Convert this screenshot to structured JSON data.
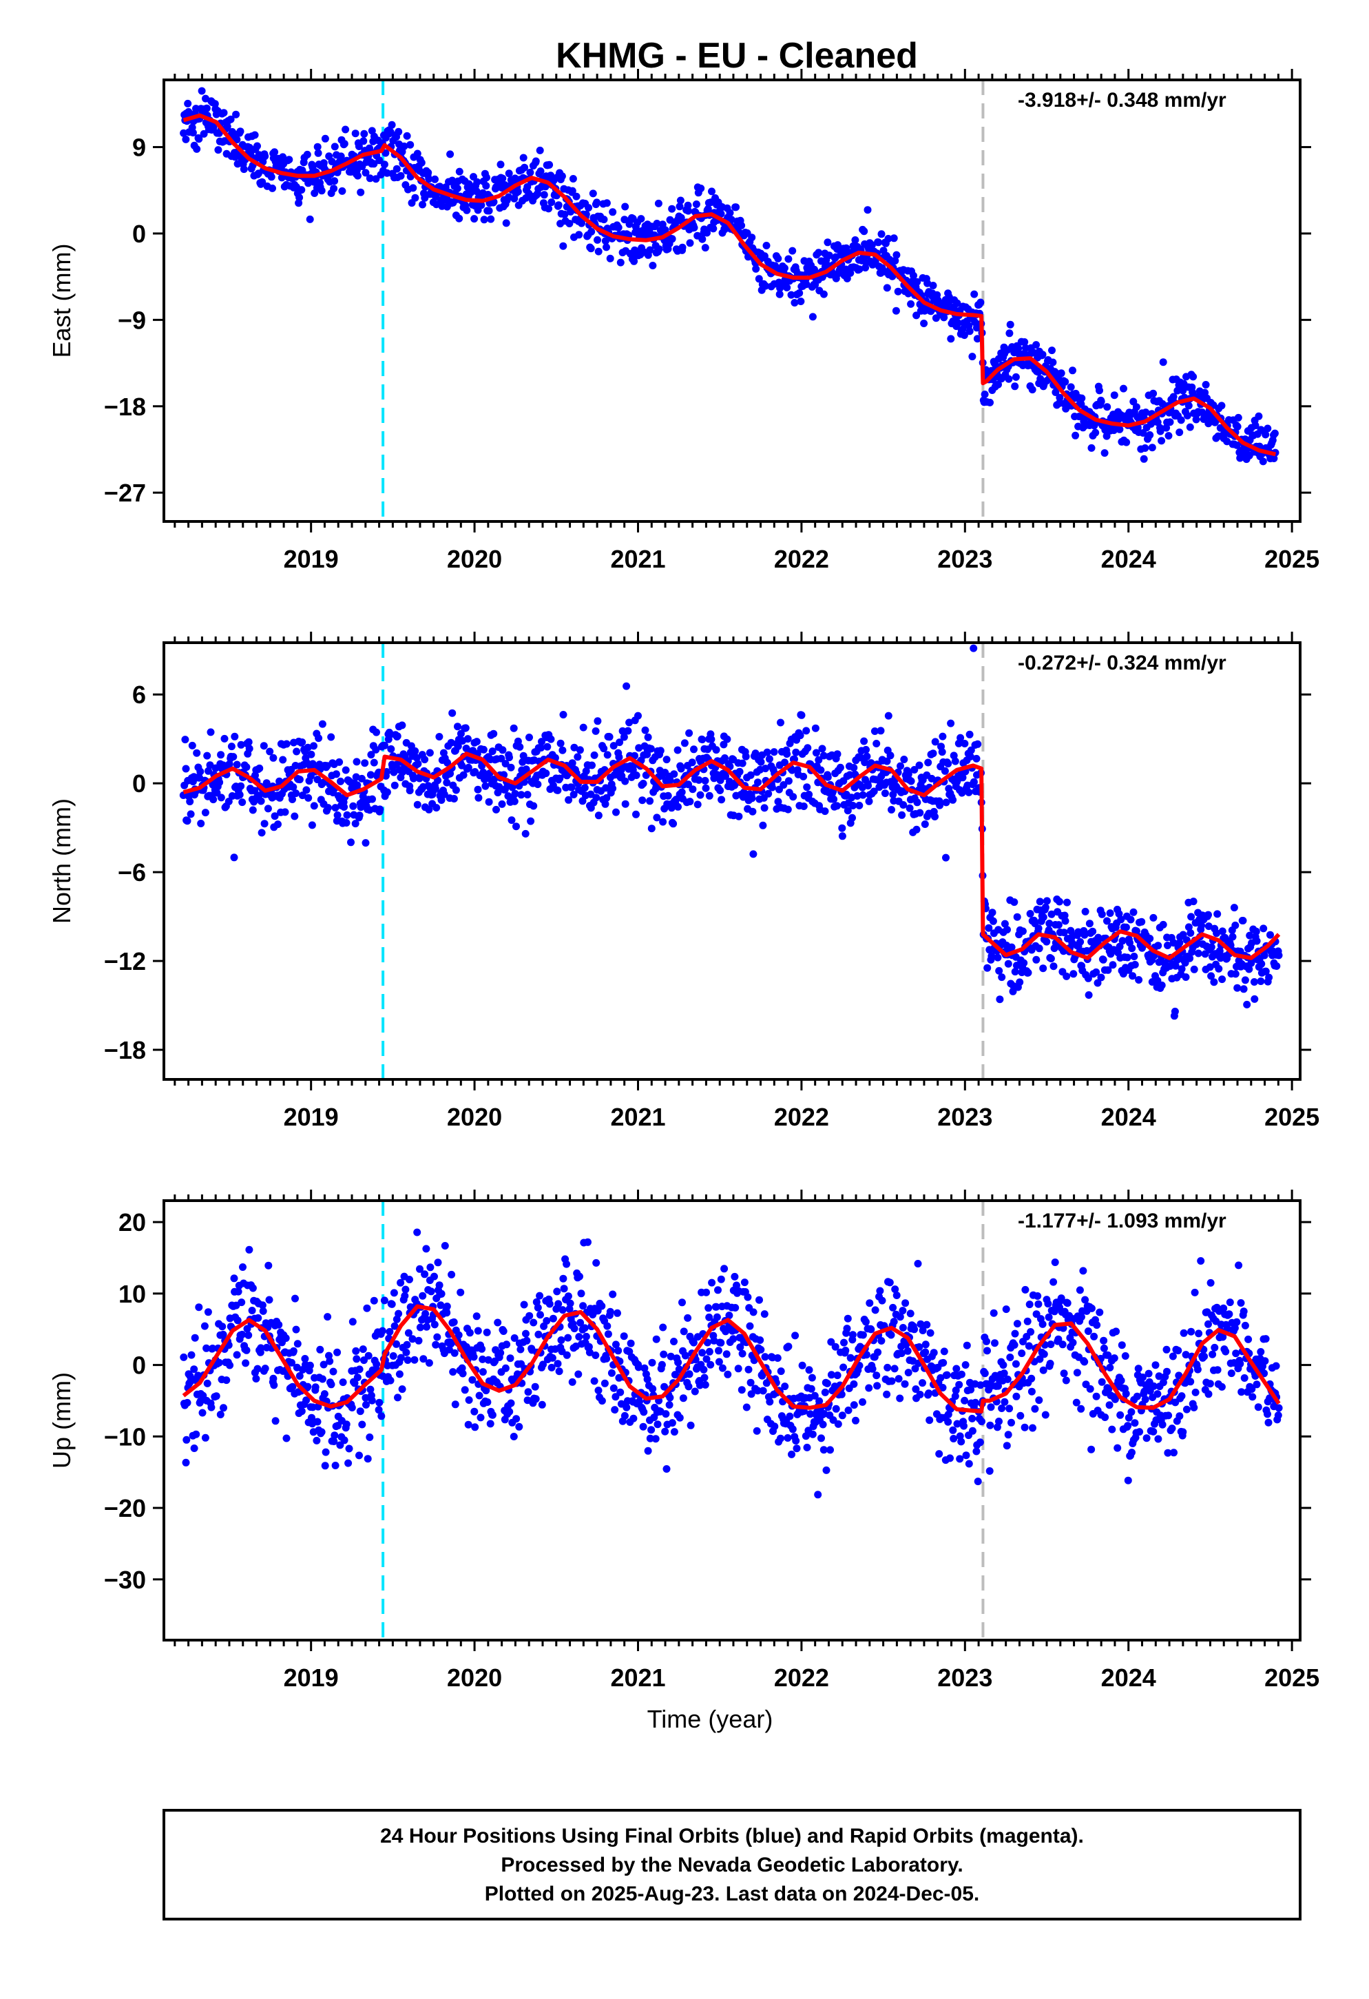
{
  "chart_data": [
    {
      "type": "scatter",
      "title": "KHMG  - EU - Cleaned",
      "ylabel": "East (mm)",
      "xlabel": "",
      "xlim": [
        2018.1,
        2025.05
      ],
      "ylim": [
        -30,
        16
      ],
      "x_ticks": [
        2019,
        2020,
        2021,
        2022,
        2023,
        2024,
        2025
      ],
      "y_ticks": [
        9,
        0,
        -9,
        -18,
        -27
      ],
      "rate_text": "-3.918+/- 0.348 mm/yr",
      "vlines": [
        {
          "x": 2019.44,
          "color": "#00e5ff"
        },
        {
          "x": 2023.11,
          "color": "#bdbdbd"
        }
      ],
      "point_color": "#0000ff",
      "series": [
        {
          "type": "line",
          "color": "#ff0000",
          "x": [
            2018.22,
            2018.32,
            2018.42,
            2018.52,
            2018.62,
            2018.72,
            2018.82,
            2018.92,
            2019.02,
            2019.12,
            2019.22,
            2019.32,
            2019.43,
            2019.45,
            2019.55,
            2019.65,
            2019.75,
            2019.85,
            2019.95,
            2020.05,
            2020.15,
            2020.25,
            2020.35,
            2020.45,
            2020.55,
            2020.65,
            2020.75,
            2020.85,
            2020.95,
            2021.05,
            2021.15,
            2021.25,
            2021.35,
            2021.45,
            2021.55,
            2021.65,
            2021.75,
            2021.85,
            2021.95,
            2022.05,
            2022.15,
            2022.25,
            2022.35,
            2022.45,
            2022.55,
            2022.65,
            2022.75,
            2022.85,
            2022.95,
            2023.05,
            2023.1,
            2023.11,
            2023.13,
            2023.2,
            2023.3,
            2023.4,
            2023.5,
            2023.6,
            2023.7,
            2023.8,
            2023.9,
            2024.0,
            2024.1,
            2024.2,
            2024.3,
            2024.4,
            2024.5,
            2024.6,
            2024.7,
            2024.8,
            2024.9
          ],
          "y": [
            11.8,
            12.3,
            11.6,
            9.5,
            7.8,
            6.8,
            6.3,
            6.0,
            6.0,
            6.5,
            7.3,
            8.2,
            8.6,
            9.2,
            7.9,
            5.8,
            4.6,
            4.0,
            3.5,
            3.4,
            3.9,
            5.0,
            5.8,
            5.3,
            3.8,
            1.9,
            0.5,
            -0.3,
            -0.6,
            -0.7,
            -0.4,
            0.6,
            1.8,
            2.0,
            1.1,
            -1.2,
            -3.2,
            -4.2,
            -4.6,
            -4.6,
            -4.0,
            -2.8,
            -2.0,
            -2.2,
            -3.6,
            -5.5,
            -7.2,
            -8.0,
            -8.4,
            -8.5,
            -8.6,
            -15.6,
            -15.4,
            -14.2,
            -13.1,
            -13.0,
            -14.4,
            -16.6,
            -18.4,
            -19.4,
            -19.8,
            -20.0,
            -19.6,
            -18.6,
            -17.6,
            -17.2,
            -18.2,
            -20.2,
            -21.8,
            -22.6,
            -23.0
          ]
        }
      ]
    },
    {
      "type": "scatter",
      "title": "",
      "ylabel": "North (mm)",
      "xlabel": "",
      "xlim": [
        2018.1,
        2025.05
      ],
      "ylim": [
        -20,
        9.5
      ],
      "x_ticks": [
        2019,
        2020,
        2021,
        2022,
        2023,
        2024,
        2025
      ],
      "y_ticks": [
        6,
        0,
        -6,
        -12,
        -18
      ],
      "rate_text": "-0.272+/- 0.324 mm/yr",
      "vlines": [
        {
          "x": 2019.44,
          "color": "#00e5ff"
        },
        {
          "x": 2023.11,
          "color": "#bdbdbd"
        }
      ],
      "point_color": "#0000ff",
      "series": [
        {
          "type": "line",
          "color": "#ff0000",
          "x": [
            2018.22,
            2018.32,
            2018.42,
            2018.52,
            2018.62,
            2018.72,
            2018.82,
            2018.92,
            2019.02,
            2019.12,
            2019.22,
            2019.32,
            2019.43,
            2019.45,
            2019.55,
            2019.65,
            2019.75,
            2019.85,
            2019.95,
            2020.05,
            2020.15,
            2020.25,
            2020.35,
            2020.45,
            2020.55,
            2020.65,
            2020.75,
            2020.85,
            2020.95,
            2021.05,
            2021.15,
            2021.25,
            2021.35,
            2021.45,
            2021.55,
            2021.65,
            2021.75,
            2021.85,
            2021.95,
            2022.05,
            2022.15,
            2022.25,
            2022.35,
            2022.45,
            2022.55,
            2022.65,
            2022.75,
            2022.85,
            2022.95,
            2023.05,
            2023.1,
            2023.11,
            2023.15,
            2023.25,
            2023.35,
            2023.45,
            2023.55,
            2023.65,
            2023.75,
            2023.85,
            2023.95,
            2024.05,
            2024.15,
            2024.25,
            2024.35,
            2024.45,
            2024.55,
            2024.65,
            2024.75,
            2024.85,
            2024.92
          ],
          "y": [
            -0.6,
            -0.3,
            0.5,
            1.0,
            0.4,
            -0.5,
            -0.2,
            0.8,
            0.9,
            0.1,
            -0.8,
            -0.4,
            0.3,
            1.8,
            1.6,
            0.8,
            0.4,
            1.1,
            2.0,
            1.6,
            0.4,
            0.0,
            0.8,
            1.6,
            1.2,
            0.1,
            0.1,
            1.1,
            1.7,
            1.0,
            -0.2,
            -0.1,
            0.9,
            1.5,
            0.9,
            -0.3,
            -0.4,
            0.6,
            1.4,
            1.1,
            -0.1,
            -0.5,
            0.4,
            1.2,
            0.9,
            -0.4,
            -0.8,
            0.1,
            0.9,
            1.2,
            1.0,
            -10.2,
            -10.6,
            -11.6,
            -11.2,
            -10.2,
            -10.4,
            -11.4,
            -11.8,
            -10.8,
            -10.0,
            -10.3,
            -11.3,
            -11.8,
            -11.0,
            -10.2,
            -10.6,
            -11.6,
            -11.8,
            -11.0,
            -10.2
          ]
        }
      ]
    },
    {
      "type": "scatter",
      "title": "",
      "ylabel": "Up (mm)",
      "xlabel": "Time (year)",
      "xlim": [
        2018.1,
        2025.05
      ],
      "ylim": [
        -38.5,
        23
      ],
      "x_ticks": [
        2019,
        2020,
        2021,
        2022,
        2023,
        2024,
        2025
      ],
      "y_ticks": [
        20,
        10,
        0,
        -10,
        -20,
        -30
      ],
      "rate_text": "-1.177+/- 1.093 mm/yr",
      "vlines": [
        {
          "x": 2019.44,
          "color": "#00e5ff"
        },
        {
          "x": 2023.11,
          "color": "#bdbdbd"
        }
      ],
      "point_color": "#0000ff",
      "series": [
        {
          "type": "line",
          "color": "#ff0000",
          "x": [
            2018.22,
            2018.32,
            2018.42,
            2018.52,
            2018.62,
            2018.72,
            2018.82,
            2018.92,
            2019.02,
            2019.12,
            2019.22,
            2019.32,
            2019.43,
            2019.45,
            2019.55,
            2019.65,
            2019.75,
            2019.85,
            2019.95,
            2020.05,
            2020.15,
            2020.25,
            2020.35,
            2020.45,
            2020.55,
            2020.65,
            2020.75,
            2020.85,
            2020.95,
            2021.05,
            2021.15,
            2021.25,
            2021.35,
            2021.45,
            2021.55,
            2021.65,
            2021.75,
            2021.85,
            2021.95,
            2022.05,
            2022.15,
            2022.25,
            2022.35,
            2022.45,
            2022.55,
            2022.65,
            2022.75,
            2022.85,
            2022.95,
            2023.05,
            2023.1,
            2023.11,
            2023.15,
            2023.25,
            2023.35,
            2023.45,
            2023.55,
            2023.65,
            2023.75,
            2023.85,
            2023.95,
            2024.05,
            2024.15,
            2024.25,
            2024.35,
            2024.45,
            2024.55,
            2024.65,
            2024.75,
            2024.85,
            2024.92
          ],
          "y": [
            -4.3,
            -2.5,
            1.2,
            4.8,
            6.3,
            4.8,
            1.0,
            -2.8,
            -5.0,
            -5.8,
            -5.2,
            -3.0,
            -0.7,
            1.5,
            5.5,
            8.2,
            7.8,
            4.8,
            0.8,
            -2.6,
            -3.6,
            -2.8,
            0.2,
            4.0,
            6.9,
            7.4,
            5.0,
            1.0,
            -3.0,
            -4.7,
            -4.4,
            -2.0,
            1.8,
            5.2,
            6.3,
            4.4,
            0.4,
            -3.5,
            -5.8,
            -6.0,
            -5.6,
            -3.0,
            1.0,
            4.4,
            5.2,
            3.8,
            0.0,
            -4.0,
            -6.2,
            -6.4,
            -6.5,
            -5.0,
            -5.0,
            -4.0,
            -1.2,
            2.6,
            5.6,
            5.8,
            3.0,
            -1.0,
            -4.5,
            -5.9,
            -6.0,
            -4.8,
            -1.2,
            3.0,
            4.9,
            4.0,
            0.4,
            -3.0,
            -5.4
          ]
        }
      ]
    }
  ],
  "footer": {
    "line1": "24 Hour Positions Using Final Orbits (blue) and Rapid Orbits (magenta).",
    "line2": "Processed by the Nevada Geodetic Laboratory.",
    "line3": "Plotted on 2025-Aug-23. Last data on 2024-Dec-05."
  }
}
